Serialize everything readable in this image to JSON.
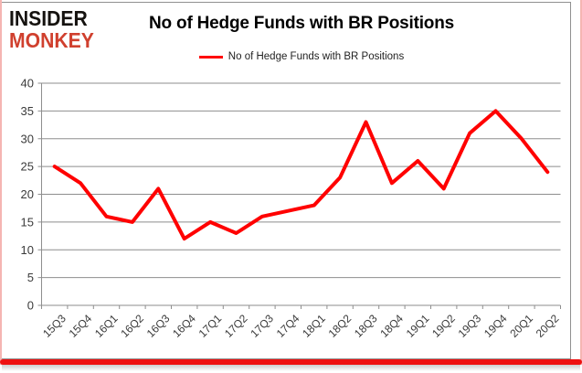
{
  "logo": {
    "line1": "INSIDER",
    "line2": "MONKEY"
  },
  "header": {
    "title": "No of Hedge Funds with BR Positions"
  },
  "legend": {
    "label": "No of Hedge Funds with BR Positions",
    "line_color": "#ff0000"
  },
  "chart_data": {
    "type": "line",
    "title": "No of Hedge Funds with BR Positions",
    "categories": [
      "15Q3",
      "15Q4",
      "16Q1",
      "16Q2",
      "16Q3",
      "16Q4",
      "17Q1",
      "17Q2",
      "17Q3",
      "17Q4",
      "18Q1",
      "18Q2",
      "18Q3",
      "18Q4",
      "19Q1",
      "19Q2",
      "19Q3",
      "19Q4",
      "20Q1",
      "20Q2"
    ],
    "series": [
      {
        "name": "No of Hedge Funds with BR Positions",
        "color": "#ff0000",
        "values": [
          25,
          22,
          16,
          15,
          21,
          12,
          15,
          13,
          16,
          17,
          18,
          23,
          33,
          22,
          26,
          21,
          31,
          35,
          30,
          24
        ]
      }
    ],
    "xlabel": "",
    "ylabel": "",
    "ylim": [
      0,
      40
    ],
    "ytick_step": 5,
    "grid": "horizontal",
    "legend_position": "top"
  },
  "colors": {
    "series_red": "#ff0000",
    "logo_red": "#d0402e",
    "logo_black": "#15120f",
    "frame_red": "#ee1111",
    "frame_pink": "#f5b5b2",
    "gridline_gray": "#8e8e8e",
    "axis_text": "#3a3a3a"
  }
}
